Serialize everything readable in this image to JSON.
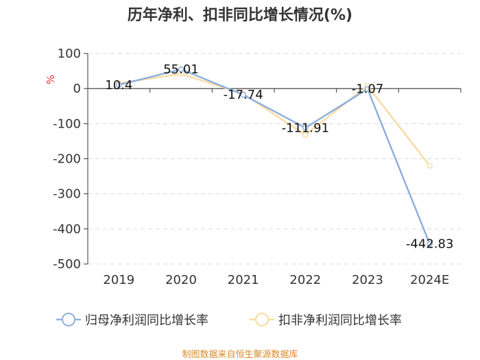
{
  "chart_data": {
    "type": "line",
    "title": "历年净利、扣非同比增长情况(%)",
    "ylabel": "%",
    "xlabel": "",
    "categories": [
      "2019",
      "2020",
      "2021",
      "2022",
      "2023",
      "2024E"
    ],
    "ylim": [
      -500,
      100
    ],
    "yticks": [
      100,
      0,
      -100,
      -200,
      -300,
      -400,
      -500
    ],
    "grid": true,
    "legend_position": "bottom",
    "series": [
      {
        "name": "归母净利润同比增长率",
        "color": "#8fb0de",
        "values": [
          10.4,
          55.01,
          -17.74,
          -111.91,
          -1.07,
          -442.83
        ],
        "labels": [
          "10.4",
          "55.01",
          "-17.74",
          "-111.91",
          "-1.07",
          "-442.83"
        ]
      },
      {
        "name": "扣非净利润同比增长率",
        "color": "#f9dba4",
        "values": [
          15,
          42,
          -15,
          -132,
          8,
          -220
        ]
      }
    ],
    "source": "制图数据来自恒生聚源数据库"
  }
}
